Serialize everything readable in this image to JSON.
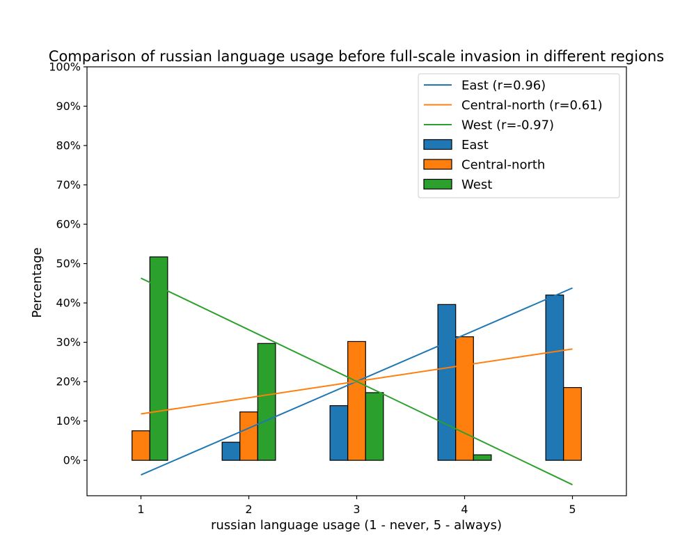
{
  "chart_data": {
    "type": "bar",
    "title": "Comparison of russian language usage before full-scale invasion in different regions",
    "xlabel": "russian language usage (1 - never, 5 - always)",
    "ylabel": "Percentage",
    "categories": [
      "1",
      "2",
      "3",
      "4",
      "5"
    ],
    "x": [
      1,
      2,
      3,
      4,
      5
    ],
    "xlim": [
      0.5,
      5.5
    ],
    "ylim": [
      -9,
      100
    ],
    "yticks": [
      0,
      10,
      20,
      30,
      40,
      50,
      60,
      70,
      80,
      90,
      100
    ],
    "ytick_labels": [
      "0%",
      "10%",
      "20%",
      "30%",
      "40%",
      "50%",
      "60%",
      "70%",
      "80%",
      "90%",
      "100%"
    ],
    "grid": false,
    "legend_position": "top-right",
    "series": [
      {
        "name": "East",
        "color": "#1f77b4",
        "values": [
          0,
          4.6,
          13.9,
          39.6,
          42.0
        ]
      },
      {
        "name": "Central-north",
        "color": "#ff7f0e",
        "values": [
          7.5,
          12.3,
          30.2,
          31.4,
          18.5
        ]
      },
      {
        "name": "West",
        "color": "#2ca02c",
        "values": [
          51.7,
          29.7,
          17.2,
          1.4,
          0
        ]
      }
    ],
    "trend_lines": [
      {
        "name": "East (r=0.96)",
        "color": "#1f77b4",
        "x": [
          1,
          5
        ],
        "y": [
          -3.7,
          43.8
        ]
      },
      {
        "name": "Central-north (r=0.61)",
        "color": "#ff7f0e",
        "x": [
          1,
          5
        ],
        "y": [
          11.8,
          28.3
        ]
      },
      {
        "name": "West (r=-0.97)",
        "color": "#2ca02c",
        "x": [
          1,
          5
        ],
        "y": [
          46.3,
          -6.2
        ]
      }
    ]
  }
}
